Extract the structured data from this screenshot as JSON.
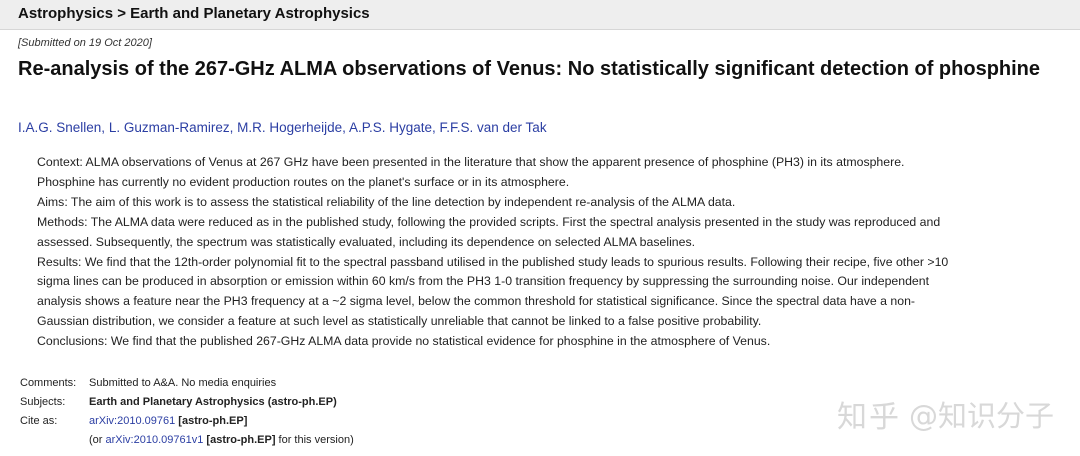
{
  "breadcrumb": "Astrophysics > Earth and Planetary Astrophysics",
  "dateline": "[Submitted on 19 Oct 2020]",
  "title": "Re-analysis of the 267-GHz ALMA observations of Venus: No statistically significant detection of phosphine",
  "authors": [
    {
      "name": "I.A.G. Snellen",
      "sep": ", "
    },
    {
      "name": "L. Guzman-Ramirez",
      "sep": ", "
    },
    {
      "name": "M.R. Hogerheijde",
      "sep": ", "
    },
    {
      "name": "A.P.S. Hygate",
      "sep": ", "
    },
    {
      "name": "F.F.S. van der Tak",
      "sep": ""
    }
  ],
  "abstract": {
    "context_1": "Context: ALMA observations of Venus at 267 GHz have been presented in the literature that show the apparent presence of phosphine (PH3) in its atmosphere.",
    "context_2": "Phosphine has currently no evident production routes on the planet's surface or in its atmosphere.",
    "aims": "Aims: The aim of this work is to assess the statistical reliability of the line detection by independent re-analysis of the ALMA data.",
    "methods_1": "Methods: The ALMA data were reduced as in the published study, following the provided scripts. First the spectral analysis presented in the study was reproduced and",
    "methods_2": "assessed. Subsequently, the spectrum was statistically evaluated, including its dependence on selected ALMA baselines.",
    "results_1": "Results: We find that the 12th-order polynomial fit to the spectral passband utilised in the published study leads to spurious results. Following their recipe, five other >10",
    "results_2": "sigma lines can be produced in absorption or emission within 60 km/s from the PH3 1-0 transition frequency by suppressing the surrounding noise. Our independent",
    "results_3": "analysis shows a feature near the PH3 frequency at a ~2 sigma level, below the common threshold for statistical significance. Since the spectral data have a non-",
    "results_4": "Gaussian distribution, we consider a feature at such level as statistically unreliable that cannot be linked to a false positive probability.",
    "conclusions": "Conclusions: We find that the published 267-GHz ALMA data provide no statistical evidence for phosphine in the atmosphere of Venus."
  },
  "meta": {
    "comments_label": "Comments:",
    "comments_value": "Submitted to A&A. No media enquiries",
    "subjects_label": "Subjects:",
    "subjects_value": "Earth and Planetary Astrophysics (astro-ph.EP)",
    "cite_label": "Cite as:",
    "cite_link": "arXiv:2010.09761",
    "cite_tag": "[astro-ph.EP]",
    "version_open": "(or ",
    "version_link": "arXiv:2010.09761v1",
    "version_tag": "[astro-ph.EP]",
    "version_close": " for this version)"
  },
  "watermark": {
    "logo": "知乎",
    "handle": "@知识分子"
  }
}
